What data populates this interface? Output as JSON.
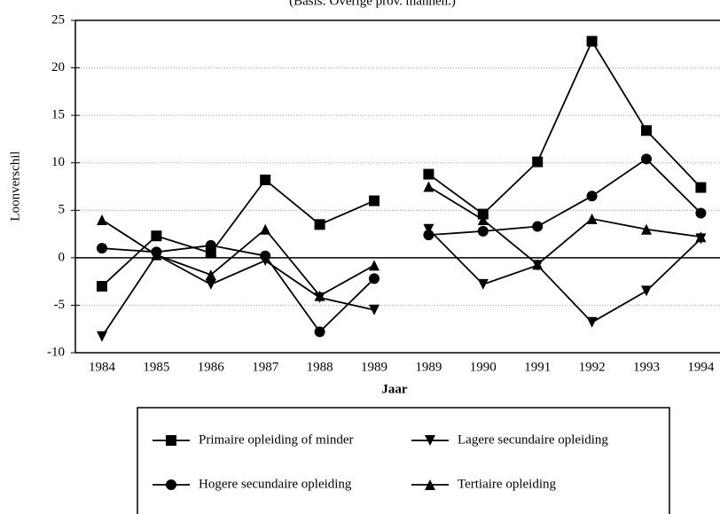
{
  "chart_data": {
    "type": "line",
    "title": "(Basis: Overige prov. mannen.)",
    "x_label": "Jaar",
    "y_label": "Loonverschil",
    "categories": [
      [
        "1984",
        "1985",
        "1986",
        "1987",
        "1988",
        "1989"
      ],
      [
        "1989",
        "1990",
        "1991",
        "1992",
        "1993",
        "1994"
      ]
    ],
    "series": [
      {
        "name": "Primaire opleiding of minder",
        "marker": "square",
        "color": "#000000",
        "values": [
          [
            -3,
            2.3,
            0.5,
            8.2,
            3.5,
            6
          ],
          [
            8.8,
            4.6,
            10.1,
            22.8,
            13.4,
            7.4
          ]
        ]
      },
      {
        "name": "Lagere secundaire opleiding",
        "marker": "triangle-down",
        "color": "#000000",
        "values": [
          [
            -8.3,
            0.3,
            -2.8,
            -0.3,
            -4.2,
            -5.5
          ],
          [
            3,
            -2.8,
            -0.8,
            -6.8,
            -3.5,
            2
          ]
        ]
      },
      {
        "name": "Hogere secundaire opleiding",
        "marker": "circle",
        "color": "#000000",
        "values": [
          [
            1,
            0.6,
            1.3,
            0.2,
            -7.8,
            -2.2
          ],
          [
            2.4,
            2.8,
            3.3,
            6.5,
            10.4,
            4.7
          ]
        ]
      },
      {
        "name": "Tertiaire opleiding",
        "marker": "triangle-up",
        "color": "#000000",
        "values": [
          [
            4,
            0.3,
            -1.8,
            3,
            -4,
            -0.8
          ],
          [
            7.5,
            4,
            -0.7,
            4.1,
            3,
            2.2
          ]
        ]
      }
    ],
    "ylim": [
      -10,
      25
    ],
    "yticks": [
      -10,
      -5,
      0,
      5,
      10,
      15,
      20,
      25
    ],
    "grid": true
  }
}
